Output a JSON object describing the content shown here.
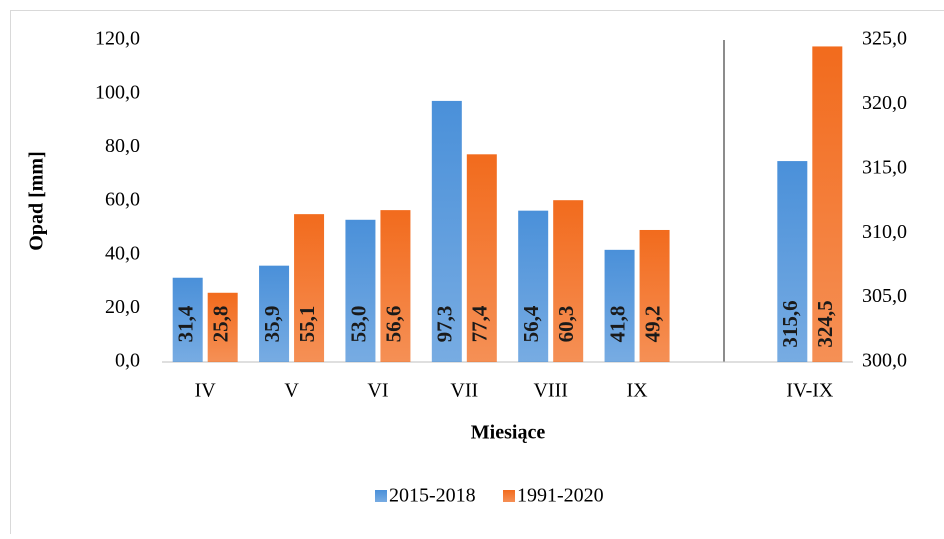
{
  "chart_data": {
    "type": "bar",
    "categories": [
      "IV",
      "V",
      "VI",
      "VII",
      "VIII",
      "IX",
      null,
      "IV-IX"
    ],
    "series": [
      {
        "name": "2015-2018",
        "color": "#4a90d9",
        "values": [
          31.4,
          35.9,
          53.0,
          97.3,
          56.4,
          41.8,
          null,
          null
        ],
        "value_labels": [
          "31,4",
          "35,9",
          "53,0",
          "97,3",
          "56,4",
          "41,8",
          null,
          null
        ]
      },
      {
        "name": "1991-2020",
        "color": "#f26b1d",
        "values": [
          25.8,
          55.1,
          56.6,
          77.4,
          60.3,
          49.2,
          null,
          null
        ],
        "value_labels": [
          "25,8",
          "55,1",
          "56,6",
          "77,4",
          "60,3",
          "49,2",
          null,
          null
        ]
      },
      {
        "axis": "y2",
        "color": "#4a90d9",
        "values": [
          null,
          null,
          null,
          null,
          null,
          null,
          null,
          315.6
        ],
        "value_labels": [
          null,
          null,
          null,
          null,
          null,
          null,
          null,
          "315,6"
        ]
      },
      {
        "axis": "y2",
        "color": "#f26b1d",
        "values": [
          null,
          null,
          null,
          null,
          null,
          null,
          null,
          324.5
        ],
        "value_labels": [
          null,
          null,
          null,
          null,
          null,
          null,
          null,
          "324,5"
        ]
      }
    ],
    "ylabel": "Opad [mm]",
    "xlabel": "Miesiące",
    "ylim": [
      0,
      120
    ],
    "yticks": [
      {
        "value": 0,
        "label": "0,0"
      },
      {
        "value": 20,
        "label": "20,0"
      },
      {
        "value": 40,
        "label": "40,0"
      },
      {
        "value": 60,
        "label": "60,0"
      },
      {
        "value": 80,
        "label": "80,0"
      },
      {
        "value": 100,
        "label": "100,0"
      },
      {
        "value": 120,
        "label": "120,0"
      }
    ],
    "y2lim": [
      300,
      325
    ],
    "y2ticks": [
      {
        "value": 300,
        "label": "300,0"
      },
      {
        "value": 305,
        "label": "305,0"
      },
      {
        "value": 310,
        "label": "310,0"
      },
      {
        "value": 315,
        "label": "315,0"
      },
      {
        "value": 320,
        "label": "320,0"
      },
      {
        "value": 325,
        "label": "325,0"
      }
    ],
    "legend": "bottom",
    "grid": false
  }
}
